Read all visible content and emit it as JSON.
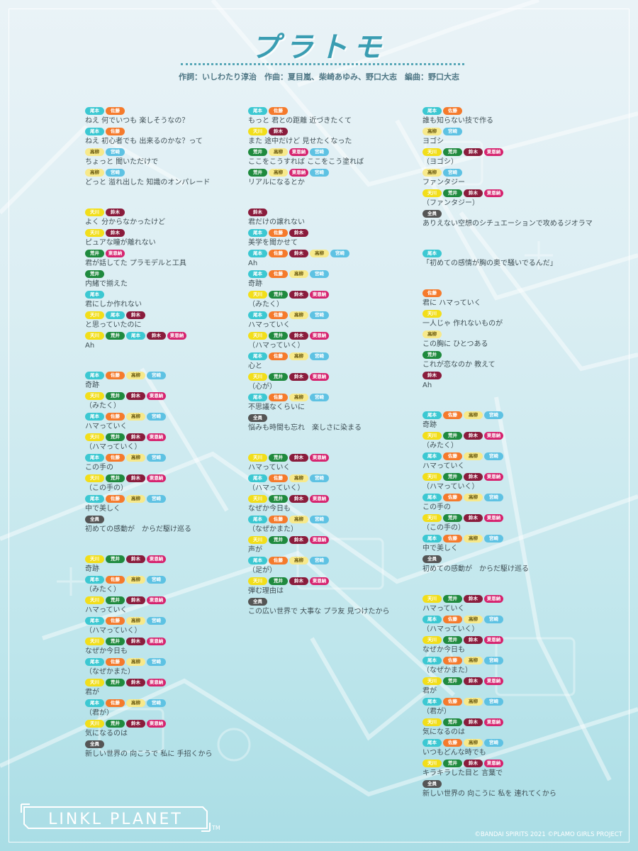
{
  "title": "プラトモ",
  "credits": "作詞：いしわたり淳治　作曲：夏目嵐、柴崎あゆみ、野口大志　編曲：野口大志",
  "brand": "LINKL PLANET",
  "trademark": "TM",
  "copyright": "©BANDAI SPIRITS 2021 ©PLAMO GIRLS PROJECT",
  "member_colors": {
    "尾本": "#3cc8d2",
    "佐藤": "#f57a2c",
    "高柳": "#f7e98b",
    "宮崎": "#5ec2e3",
    "天川": "#f2de1a",
    "荒井": "#1f8a3e",
    "鈴木": "#8a1c3c",
    "東恩納": "#d6246f",
    "全員": "#555555"
  },
  "columns": [
    [
      [
        {
          "singers": [
            "尾本",
            "佐藤"
          ],
          "text": "ねえ 何でいつも 楽しそうなの？"
        },
        {
          "singers": [
            "尾本",
            "佐藤"
          ],
          "text": "ねえ 初心者でも 出来るのかな？って"
        },
        {
          "singers": [
            "高柳",
            "宮崎"
          ],
          "text": "ちょっと 聞いただけで"
        },
        {
          "singers": [
            "高柳",
            "宮崎"
          ],
          "text": "どっと 溢れ出した 知識のオンパレード"
        }
      ],
      [
        {
          "singers": [
            "天川",
            "鈴木"
          ],
          "text": "よく 分からなかったけど"
        },
        {
          "singers": [
            "天川",
            "鈴木"
          ],
          "text": "ピュアな瞳が離れない"
        },
        {
          "singers": [
            "荒井",
            "東恩納"
          ],
          "text": "君が話してた プラモデルと工具"
        },
        {
          "singers": [
            "荒井"
          ],
          "text": "内緒で揃えた"
        },
        {
          "singers": [
            "尾本"
          ],
          "text": "君にしか作れない"
        },
        {
          "singers": [
            "天川",
            "尾本",
            "鈴木"
          ],
          "text": "と思っていたのに"
        },
        {
          "singers": [
            "天川",
            "荒井",
            "尾本",
            "鈴木",
            "東恩納"
          ],
          "text": "Ah"
        }
      ],
      [
        {
          "singers": [
            "尾本",
            "佐藤",
            "高柳",
            "宮崎"
          ],
          "text": "奇跡"
        },
        {
          "singers": [
            "天川",
            "荒井",
            "鈴木",
            "東恩納"
          ],
          "text": "（みたく）"
        },
        {
          "singers": [
            "尾本",
            "佐藤",
            "高柳",
            "宮崎"
          ],
          "text": "ハマっていく"
        },
        {
          "singers": [
            "天川",
            "荒井",
            "鈴木",
            "東恩納"
          ],
          "text": "（ハマっていく）"
        },
        {
          "singers": [
            "尾本",
            "佐藤",
            "高柳",
            "宮崎"
          ],
          "text": "この手の"
        },
        {
          "singers": [
            "天川",
            "荒井",
            "鈴木",
            "東恩納"
          ],
          "text": "（この手の）"
        },
        {
          "singers": [
            "尾本",
            "佐藤",
            "高柳",
            "宮崎"
          ],
          "text": "中で美しく"
        },
        {
          "singers": [
            "全員"
          ],
          "text": "初めての感動が　からだ駆け巡る"
        }
      ],
      [
        {
          "singers": [
            "天川",
            "荒井",
            "鈴木",
            "東恩納"
          ],
          "text": "奇跡"
        },
        {
          "singers": [
            "尾本",
            "佐藤",
            "高柳",
            "宮崎"
          ],
          "text": "（みたく）"
        },
        {
          "singers": [
            "天川",
            "荒井",
            "鈴木",
            "東恩納"
          ],
          "text": "ハマっていく"
        },
        {
          "singers": [
            "尾本",
            "佐藤",
            "高柳",
            "宮崎"
          ],
          "text": "（ハマっていく）"
        },
        {
          "singers": [
            "天川",
            "荒井",
            "鈴木",
            "東恩納"
          ],
          "text": "なぜか今日も"
        },
        {
          "singers": [
            "尾本",
            "佐藤",
            "高柳",
            "宮崎"
          ],
          "text": "（なぜかまた）"
        },
        {
          "singers": [
            "天川",
            "荒井",
            "鈴木",
            "東恩納"
          ],
          "text": "君が"
        },
        {
          "singers": [
            "尾本",
            "佐藤",
            "高柳",
            "宮崎"
          ],
          "text": "（君が）"
        },
        {
          "singers": [
            "天川",
            "荒井",
            "鈴木",
            "東恩納"
          ],
          "text": "気になるのは"
        },
        {
          "singers": [
            "全員"
          ],
          "text": "新しい世界の 向こうで 私に 手招くから"
        }
      ]
    ],
    [
      [
        {
          "singers": [
            "尾本",
            "佐藤"
          ],
          "text": "もっと 君との距離 近づきたくて"
        },
        {
          "singers": [
            "天川",
            "鈴木"
          ],
          "text": "また 途中だけど 見せたくなった"
        },
        {
          "singers": [
            "荒井",
            "高柳",
            "東恩納",
            "宮崎"
          ],
          "text": "ここをこうすれば ここをこう塗れば"
        },
        {
          "singers": [
            "荒井",
            "高柳",
            "東恩納",
            "宮崎"
          ],
          "text": "リアルになるとか"
        }
      ],
      [
        {
          "singers": [
            "鈴木"
          ],
          "text": "君だけの譲れない"
        },
        {
          "singers": [
            "尾本",
            "佐藤",
            "鈴木"
          ],
          "text": "美学を聞かせて"
        },
        {
          "singers": [
            "尾本",
            "佐藤",
            "鈴木",
            "高柳",
            "宮崎"
          ],
          "text": "Ah"
        },
        {
          "singers": [
            "尾本",
            "佐藤",
            "高柳",
            "宮崎"
          ],
          "text": "奇跡"
        },
        {
          "singers": [
            "天川",
            "荒井",
            "鈴木",
            "東恩納"
          ],
          "text": "（みたく）"
        },
        {
          "singers": [
            "尾本",
            "佐藤",
            "高柳",
            "宮崎"
          ],
          "text": "ハマっていく"
        },
        {
          "singers": [
            "天川",
            "荒井",
            "鈴木",
            "東恩納"
          ],
          "text": "（ハマっていく）"
        },
        {
          "singers": [
            "尾本",
            "佐藤",
            "高柳",
            "宮崎"
          ],
          "text": "心と"
        },
        {
          "singers": [
            "天川",
            "荒井",
            "鈴木",
            "東恩納"
          ],
          "text": "（心が）"
        },
        {
          "singers": [
            "尾本",
            "佐藤",
            "高柳",
            "宮崎"
          ],
          "text": "不思議なくらいに"
        },
        {
          "singers": [
            "全員"
          ],
          "text": "悩みも時間も忘れ　楽しさに染まる"
        }
      ],
      [
        {
          "singers": [
            "天川",
            "荒井",
            "鈴木",
            "東恩納"
          ],
          "text": "ハマっていく"
        },
        {
          "singers": [
            "尾本",
            "佐藤",
            "高柳",
            "宮崎"
          ],
          "text": "（ハマっていく）"
        },
        {
          "singers": [
            "天川",
            "荒井",
            "鈴木",
            "東恩納"
          ],
          "text": "なぜか今日も"
        },
        {
          "singers": [
            "尾本",
            "佐藤",
            "高柳",
            "宮崎"
          ],
          "text": "（なぜかまた）"
        },
        {
          "singers": [
            "天川",
            "荒井",
            "鈴木",
            "東恩納"
          ],
          "text": "声が"
        },
        {
          "singers": [
            "尾本",
            "佐藤",
            "高柳",
            "宮崎"
          ],
          "text": "（足が）"
        },
        {
          "singers": [
            "天川",
            "荒井",
            "鈴木",
            "東恩納"
          ],
          "text": "弾む理由は"
        },
        {
          "singers": [
            "全員"
          ],
          "text": "この広い世界で 大事な プラ友 見つけたから"
        }
      ]
    ],
    [
      [
        {
          "singers": [
            "尾本",
            "佐藤"
          ],
          "text": "誰も知らない技で作る"
        },
        {
          "singers": [
            "高柳",
            "宮崎"
          ],
          "text": "ヨゴシ"
        },
        {
          "singers": [
            "天川",
            "荒井",
            "鈴木",
            "東恩納"
          ],
          "text": "（ヨゴシ）"
        },
        {
          "singers": [
            "高柳",
            "宮崎"
          ],
          "text": "ファンタジー"
        },
        {
          "singers": [
            "天川",
            "荒井",
            "鈴木",
            "東恩納"
          ],
          "text": "（ファンタジー）"
        },
        {
          "singers": [
            "全員"
          ],
          "text": "ありえない空想のシチュエーションで攻めるジオラマ"
        }
      ],
      [
        {
          "singers": [
            "尾本"
          ],
          "text": "「初めての感情が胸の奥で騒いでるんだ」"
        }
      ],
      [
        {
          "singers": [
            "佐藤"
          ],
          "text": "君に ハマっていく"
        },
        {
          "singers": [
            "天川"
          ],
          "text": "一人じゃ 作れないものが"
        },
        {
          "singers": [
            "高柳"
          ],
          "text": "この胸に ひとつある"
        },
        {
          "singers": [
            "荒井"
          ],
          "text": "これが恋なのか 教えて"
        },
        {
          "singers": [
            "鈴木"
          ],
          "text": "Ah"
        }
      ],
      [
        {
          "singers": [
            "尾本",
            "佐藤",
            "高柳",
            "宮崎"
          ],
          "text": "奇跡"
        },
        {
          "singers": [
            "天川",
            "荒井",
            "鈴木",
            "東恩納"
          ],
          "text": "（みたく）"
        },
        {
          "singers": [
            "尾本",
            "佐藤",
            "高柳",
            "宮崎"
          ],
          "text": "ハマっていく"
        },
        {
          "singers": [
            "天川",
            "荒井",
            "鈴木",
            "東恩納"
          ],
          "text": "（ハマっていく）"
        },
        {
          "singers": [
            "尾本",
            "佐藤",
            "高柳",
            "宮崎"
          ],
          "text": "この手の"
        },
        {
          "singers": [
            "天川",
            "荒井",
            "鈴木",
            "東恩納"
          ],
          "text": "（この手の）"
        },
        {
          "singers": [
            "尾本",
            "佐藤",
            "高柳",
            "宮崎"
          ],
          "text": "中で美しく"
        },
        {
          "singers": [
            "全員"
          ],
          "text": "初めての感動が　からだ駆け巡る"
        }
      ],
      [
        {
          "singers": [
            "天川",
            "荒井",
            "鈴木",
            "東恩納"
          ],
          "text": "ハマっていく"
        },
        {
          "singers": [
            "尾本",
            "佐藤",
            "高柳",
            "宮崎"
          ],
          "text": "（ハマっていく）"
        },
        {
          "singers": [
            "天川",
            "荒井",
            "鈴木",
            "東恩納"
          ],
          "text": "なぜか今日も"
        },
        {
          "singers": [
            "尾本",
            "佐藤",
            "高柳",
            "宮崎"
          ],
          "text": "（なぜかまた）"
        },
        {
          "singers": [
            "天川",
            "荒井",
            "鈴木",
            "東恩納"
          ],
          "text": "君が"
        },
        {
          "singers": [
            "尾本",
            "佐藤",
            "高柳",
            "宮崎"
          ],
          "text": "（君が）"
        },
        {
          "singers": [
            "天川",
            "荒井",
            "鈴木",
            "東恩納"
          ],
          "text": "気になるのは"
        },
        {
          "singers": [
            "尾本",
            "佐藤",
            "高柳",
            "宮崎"
          ],
          "text": "いつもどんな時でも"
        },
        {
          "singers": [
            "天川",
            "荒井",
            "鈴木",
            "東恩納"
          ],
          "text": "キラキラした目と 言葉で"
        },
        {
          "singers": [
            "全員"
          ],
          "text": "新しい世界の 向こうに 私を 連れてくから"
        }
      ]
    ]
  ]
}
